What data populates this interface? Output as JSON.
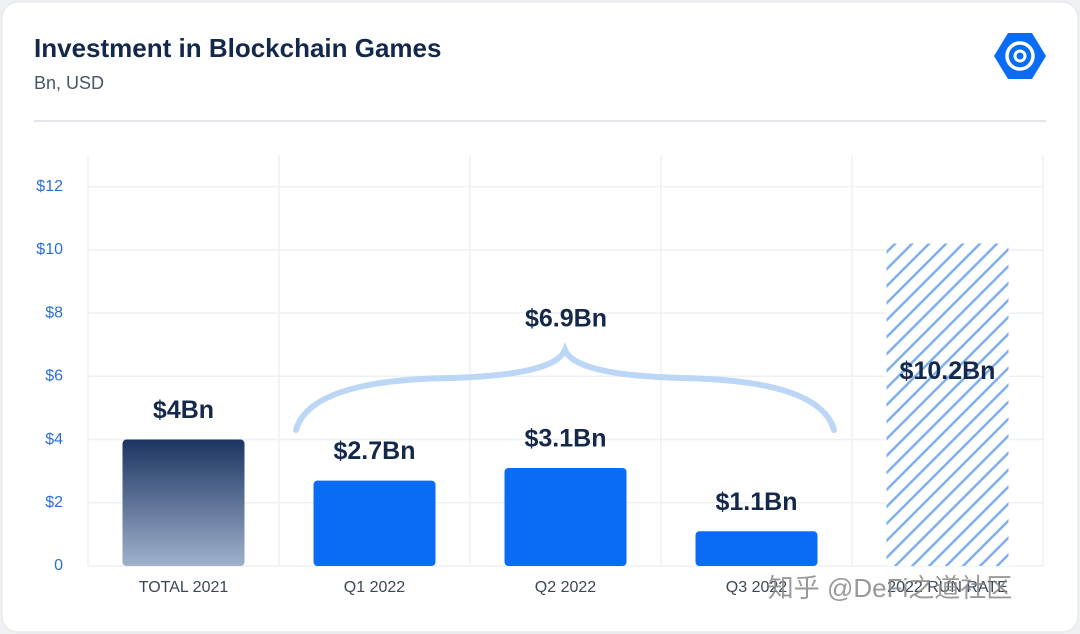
{
  "chart_data": {
    "type": "bar",
    "title": "Investment in Blockchain Games",
    "subtitle": "Bn, USD",
    "categories": [
      "TOTAL 2021",
      "Q1 2022",
      "Q2 2022",
      "Q3 2022",
      "2022 RUN RATE"
    ],
    "values": [
      4,
      2.7,
      3.1,
      1.1,
      10.2
    ],
    "value_labels": [
      "$4Bn",
      "$2.7Bn",
      "$3.1Bn",
      "$1.1Bn",
      "$10.2Bn"
    ],
    "colors": [
      "#1c3461",
      "#0a6cf5",
      "#0a6cf5",
      "#0a6cf5",
      "#7fb0ee"
    ],
    "annotation": "$6.9Bn",
    "watermark": "知乎 @DeFi之道社区",
    "ylim": [
      0,
      13
    ],
    "yticks": [
      0,
      {
        "value": 2,
        "label": "$2"
      },
      {
        "value": 4,
        "label": "$4"
      },
      {
        "value": 6,
        "label": "$6"
      },
      {
        "value": 8,
        "label": "$8"
      },
      {
        "value": 10,
        "label": "$10"
      },
      {
        "value": 12,
        "label": "$12"
      }
    ],
    "grid": true
  }
}
